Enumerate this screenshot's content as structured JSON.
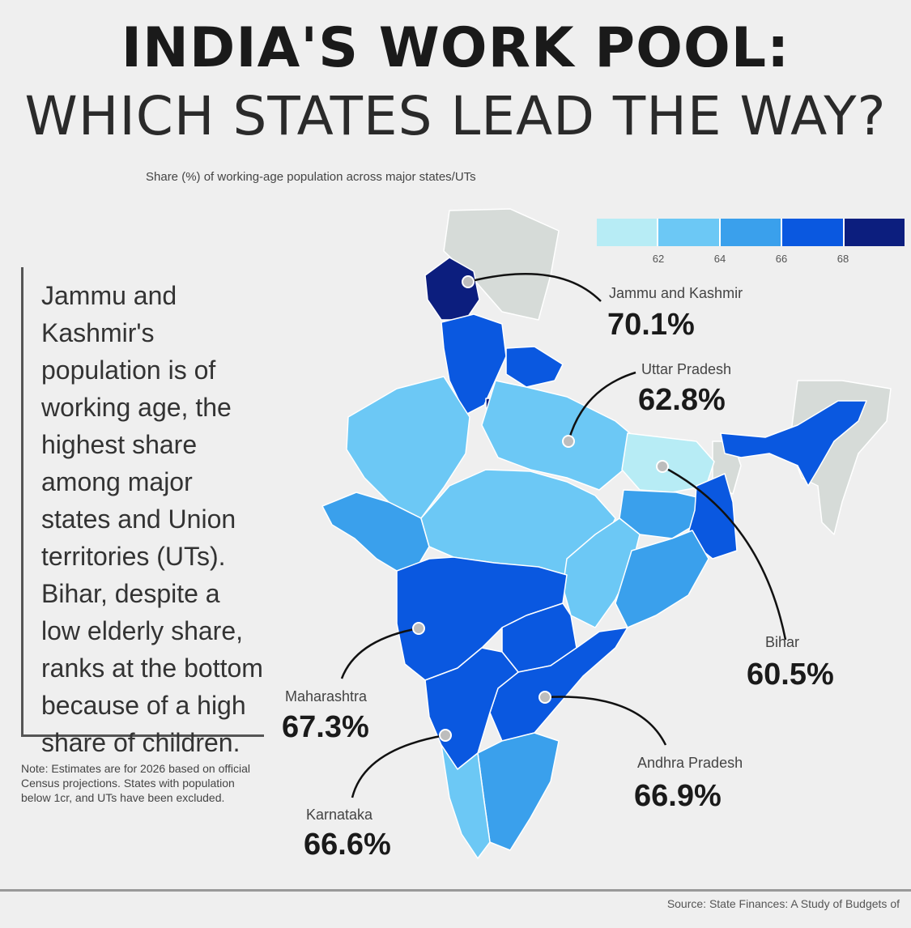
{
  "title": {
    "line1": "India's work pool:",
    "line2": "Which states lead the way?"
  },
  "subtitle": "Share (%) of working-age population across major states/UTs",
  "legend": {
    "colors": [
      "#b7ecf5",
      "#6cc8f5",
      "#3aa0ec",
      "#0a58e0",
      "#0c1e7e"
    ],
    "ticks": [
      "62",
      "64",
      "66",
      "68"
    ]
  },
  "insight": {
    "text": "Jammu and Kashmir's population is of working age, the highest share among major states and Union territories (UTs). Bihar, despite a low elderly share, ranks at the bottom because of a high share of children."
  },
  "note": "Note: Estimates are for 2026 based on official Census projections. States with population below 1cr, and UTs have been excluded.",
  "source": "Source: State Finances: A Study of Budgets of",
  "map_data": {
    "colors": {
      "neighbour": "#d6dbd8",
      "border": "#ffffff"
    },
    "callouts": [
      {
        "id": "jammu-kashmir",
        "name": "Jammu and Kashmir",
        "value": "70.1%"
      },
      {
        "id": "uttar-pradesh",
        "name": "Uttar Pradesh",
        "value": "62.8%"
      },
      {
        "id": "bihar",
        "name": "Bihar",
        "value": "60.5%"
      },
      {
        "id": "maharashtra",
        "name": "Maharashtra",
        "value": "67.3%"
      },
      {
        "id": "andhra-pradesh",
        "name": "Andhra Pradesh",
        "value": "66.9%"
      },
      {
        "id": "karnataka",
        "name": "Karnataka",
        "value": "66.6%"
      }
    ]
  }
}
